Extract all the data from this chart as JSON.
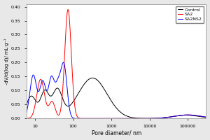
{
  "title": "",
  "xlabel": "Pore diameter/ nm",
  "ylabel": "-dV/d(log d)/ mL·g⁻¹",
  "xlim_log": [
    6,
    300000
  ],
  "ylim": [
    0.0,
    0.41
  ],
  "yticks": [
    0.0,
    0.05,
    0.1,
    0.15,
    0.2,
    0.25,
    0.3,
    0.35,
    0.4
  ],
  "xticks": [
    10,
    100,
    1000,
    10000,
    100000
  ],
  "xtick_labels": [
    "10",
    "100",
    "1000",
    "10000",
    "100000"
  ],
  "legend_labels": [
    "Control",
    "SA2",
    "SA2NS2"
  ],
  "line_colors": [
    "black",
    "red",
    "blue"
  ],
  "background_color": "#e8e8e8",
  "plot_bg": "#ffffff",
  "figsize": [
    3.0,
    2.0
  ],
  "dpi": 100
}
